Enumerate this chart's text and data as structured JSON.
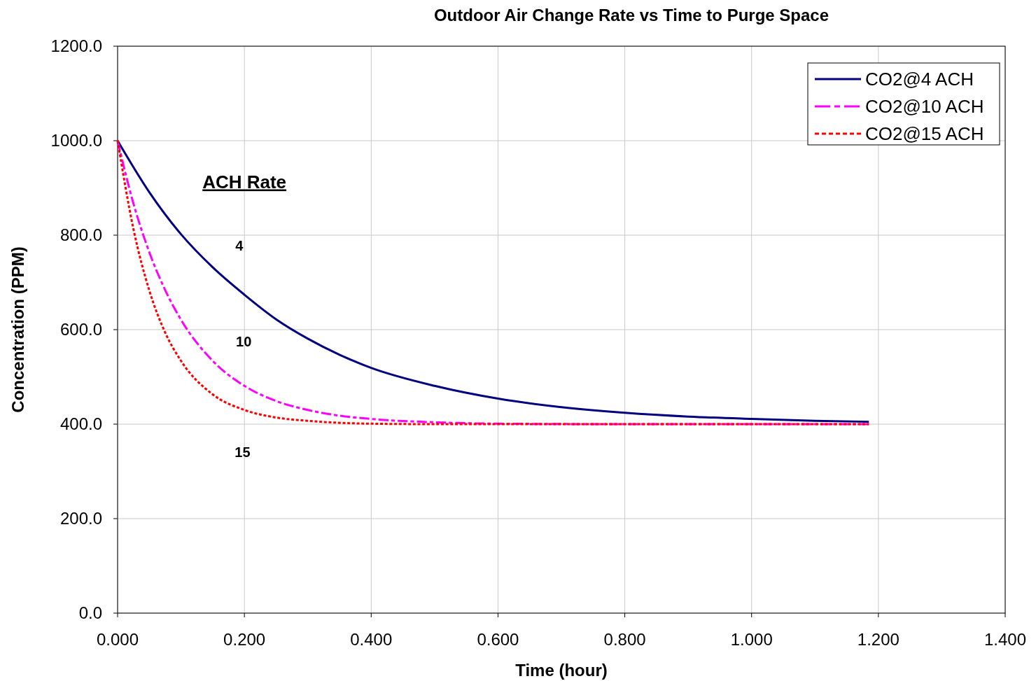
{
  "chart_data": {
    "type": "line",
    "title": "Outdoor Air Change Rate vs Time to Purge Space",
    "xlabel": "Time (hour)",
    "ylabel": "Concentration (PPM)",
    "xlim": [
      0,
      1.4
    ],
    "ylim": [
      0,
      1200
    ],
    "xticks": [
      {
        "value": 0,
        "label": "0.000"
      },
      {
        "value": 0.2,
        "label": "0.200"
      },
      {
        "value": 0.4,
        "label": "0.400"
      },
      {
        "value": 0.6,
        "label": "0.600"
      },
      {
        "value": 0.8,
        "label": "0.800"
      },
      {
        "value": 1.0,
        "label": "1.000"
      },
      {
        "value": 1.2,
        "label": "1.200"
      },
      {
        "value": 1.4,
        "label": "1.400"
      }
    ],
    "yticks": [
      {
        "value": 0,
        "label": "0.0"
      },
      {
        "value": 200,
        "label": "200.0"
      },
      {
        "value": 400,
        "label": "400.0"
      },
      {
        "value": 600,
        "label": "600.0"
      },
      {
        "value": 800,
        "label": "800.0"
      },
      {
        "value": 1000,
        "label": "1000.0"
      },
      {
        "value": 1200,
        "label": "1200.0"
      }
    ],
    "grid": true,
    "legend": "top right",
    "series": [
      {
        "name": "CO2@4 ACH",
        "color": "#000080",
        "line_style": "solid",
        "x": [
          0,
          0.05,
          0.1,
          0.15,
          0.2,
          0.25,
          0.3,
          0.35,
          0.4,
          0.5,
          0.6,
          0.7,
          0.8,
          0.9,
          1.0,
          1.1,
          1.185
        ],
        "values": [
          1000,
          891,
          802,
          732,
          674,
          622,
          581,
          547,
          519,
          481,
          454,
          436,
          424,
          416,
          411,
          407,
          405
        ]
      },
      {
        "name": "CO2@10 ACH",
        "color": "#ff00ff",
        "line_style": "dashed",
        "x": [
          0,
          0.025,
          0.05,
          0.075,
          0.1,
          0.15,
          0.2,
          0.25,
          0.3,
          0.35,
          0.4,
          0.5,
          0.6,
          0.8,
          1.185
        ],
        "values": [
          1000,
          867,
          764,
          684,
          621,
          534,
          481,
          449,
          430,
          418,
          411,
          404,
          401,
          400,
          400
        ]
      },
      {
        "name": "CO2@15 ACH",
        "color": "#ff0000",
        "line_style": "dotted",
        "x": [
          0,
          0.025,
          0.05,
          0.075,
          0.1,
          0.15,
          0.2,
          0.25,
          0.3,
          0.4,
          0.5,
          1.185
        ],
        "values": [
          1000,
          813,
          683,
          594,
          534,
          463,
          430,
          414,
          407,
          401,
          400,
          400
        ]
      }
    ],
    "annotations": [
      "ACH Rate",
      "4",
      "10",
      "15"
    ]
  }
}
